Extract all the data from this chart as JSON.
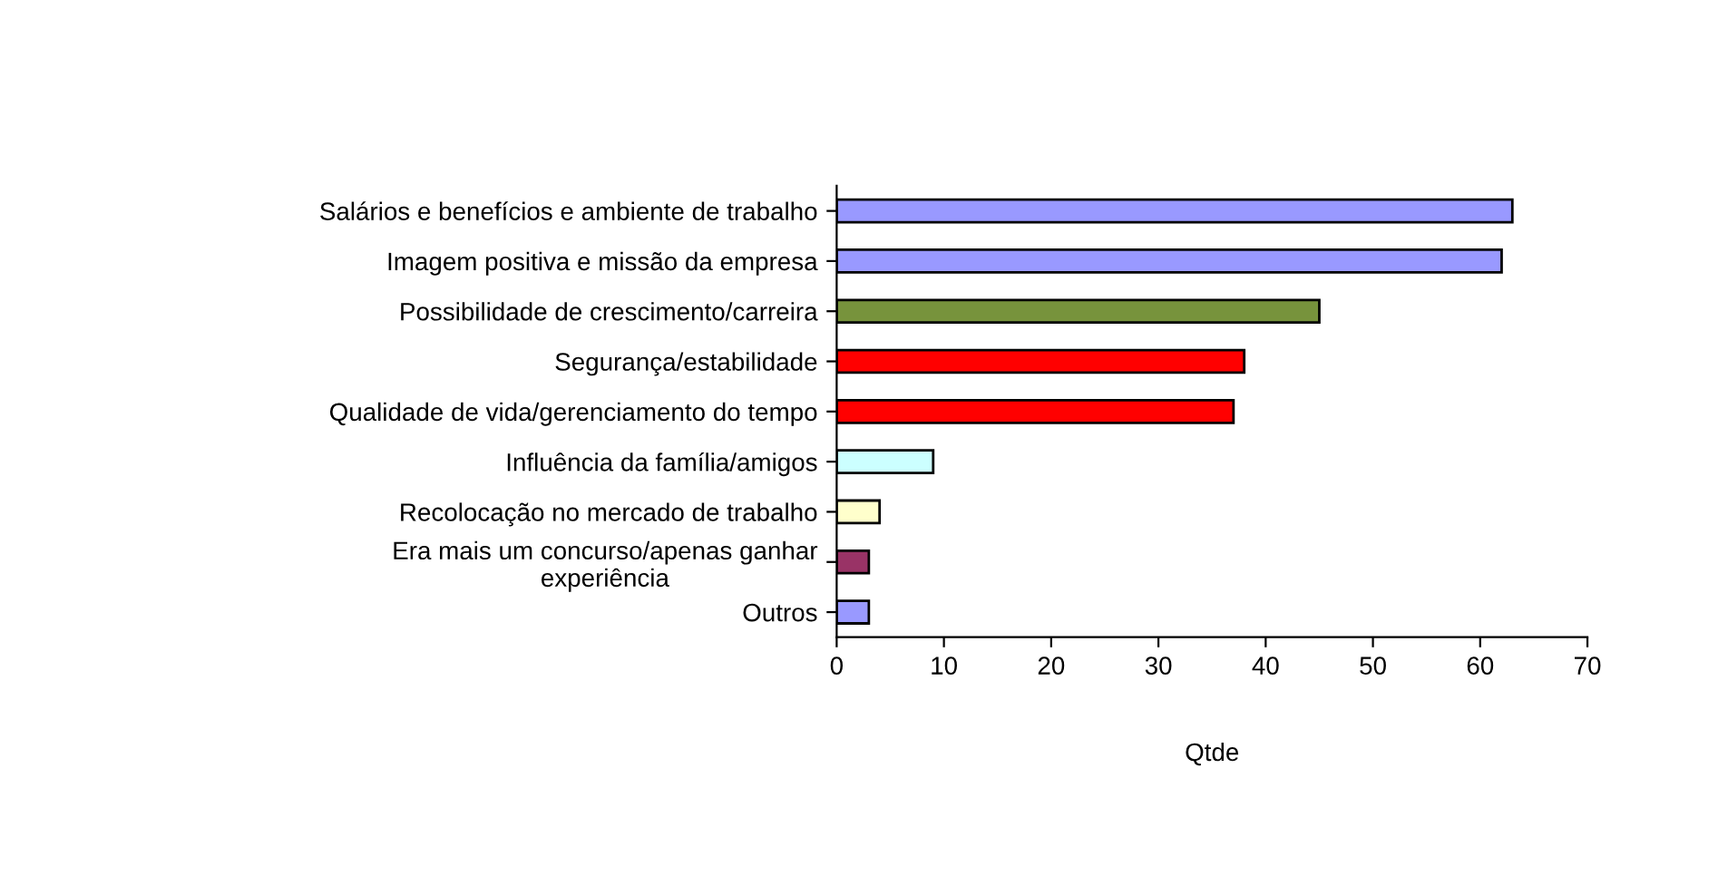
{
  "chart_data": {
    "type": "bar",
    "orientation": "horizontal",
    "xlabel": "Qtde",
    "categories": [
      "Salários e benefícios e ambiente de trabalho",
      "Imagem positiva e missão da empresa",
      "Possibilidade de crescimento/carreira",
      "Segurança/estabilidade",
      "Qualidade de vida/gerenciamento do tempo",
      "Influência da família/amigos",
      "Recolocação no mercado de trabalho",
      "Era mais um concurso/apenas ganhar\nexperiência",
      "Outros"
    ],
    "values": [
      63,
      62,
      45,
      38,
      37,
      9,
      4,
      3,
      3
    ],
    "colors": [
      "#9999ff",
      "#9999ff",
      "#77933c",
      "#ff0000",
      "#ff0000",
      "#ccffff",
      "#ffffcc",
      "#993366",
      "#9999ff"
    ],
    "xlim": [
      0,
      70
    ],
    "xticks": [
      0,
      10,
      20,
      30,
      40,
      50,
      60,
      70
    ],
    "grid": false,
    "legend": false
  }
}
